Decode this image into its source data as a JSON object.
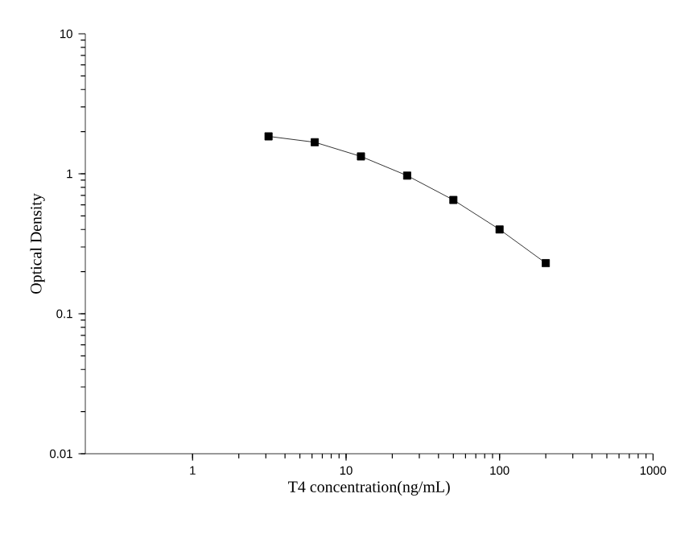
{
  "chart_data": {
    "type": "line",
    "xlabel": "T4 concentration(ng/mL)",
    "ylabel": "Optical Density",
    "x": [
      3.125,
      6.25,
      12.5,
      25,
      50,
      100,
      200
    ],
    "values": [
      1.85,
      1.68,
      1.33,
      0.97,
      0.65,
      0.4,
      0.23
    ],
    "color": "#000000",
    "marker": "square",
    "log": "xy",
    "xlim": [
      0.2,
      1000
    ],
    "ylim": [
      0.01,
      10
    ],
    "xticks": [
      1,
      10,
      100,
      1000
    ],
    "yticks": [
      0.01,
      0.1,
      1,
      10
    ]
  }
}
